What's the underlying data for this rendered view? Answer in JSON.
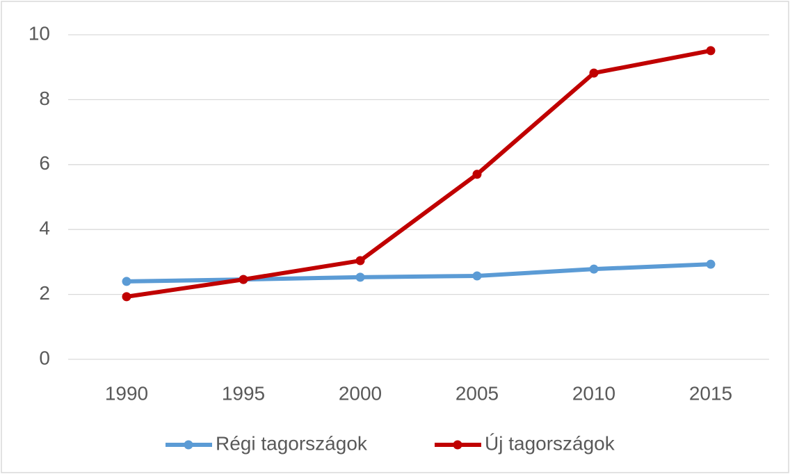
{
  "chart_data": {
    "type": "line",
    "categories": [
      "1990",
      "1995",
      "2000",
      "2005",
      "2010",
      "2015"
    ],
    "series": [
      {
        "name": "Régi tagországok",
        "color": "#5b9bd5",
        "values": [
          2.4,
          2.46,
          2.53,
          2.57,
          2.78,
          2.93
        ]
      },
      {
        "name": "Új tagországok",
        "color": "#c00000",
        "values": [
          1.93,
          2.46,
          3.04,
          5.7,
          8.82,
          9.51
        ]
      }
    ],
    "ylim": [
      0,
      10
    ],
    "yticks": [
      0,
      2,
      4,
      6,
      8,
      10
    ],
    "grid": true,
    "legend": "bottom"
  }
}
